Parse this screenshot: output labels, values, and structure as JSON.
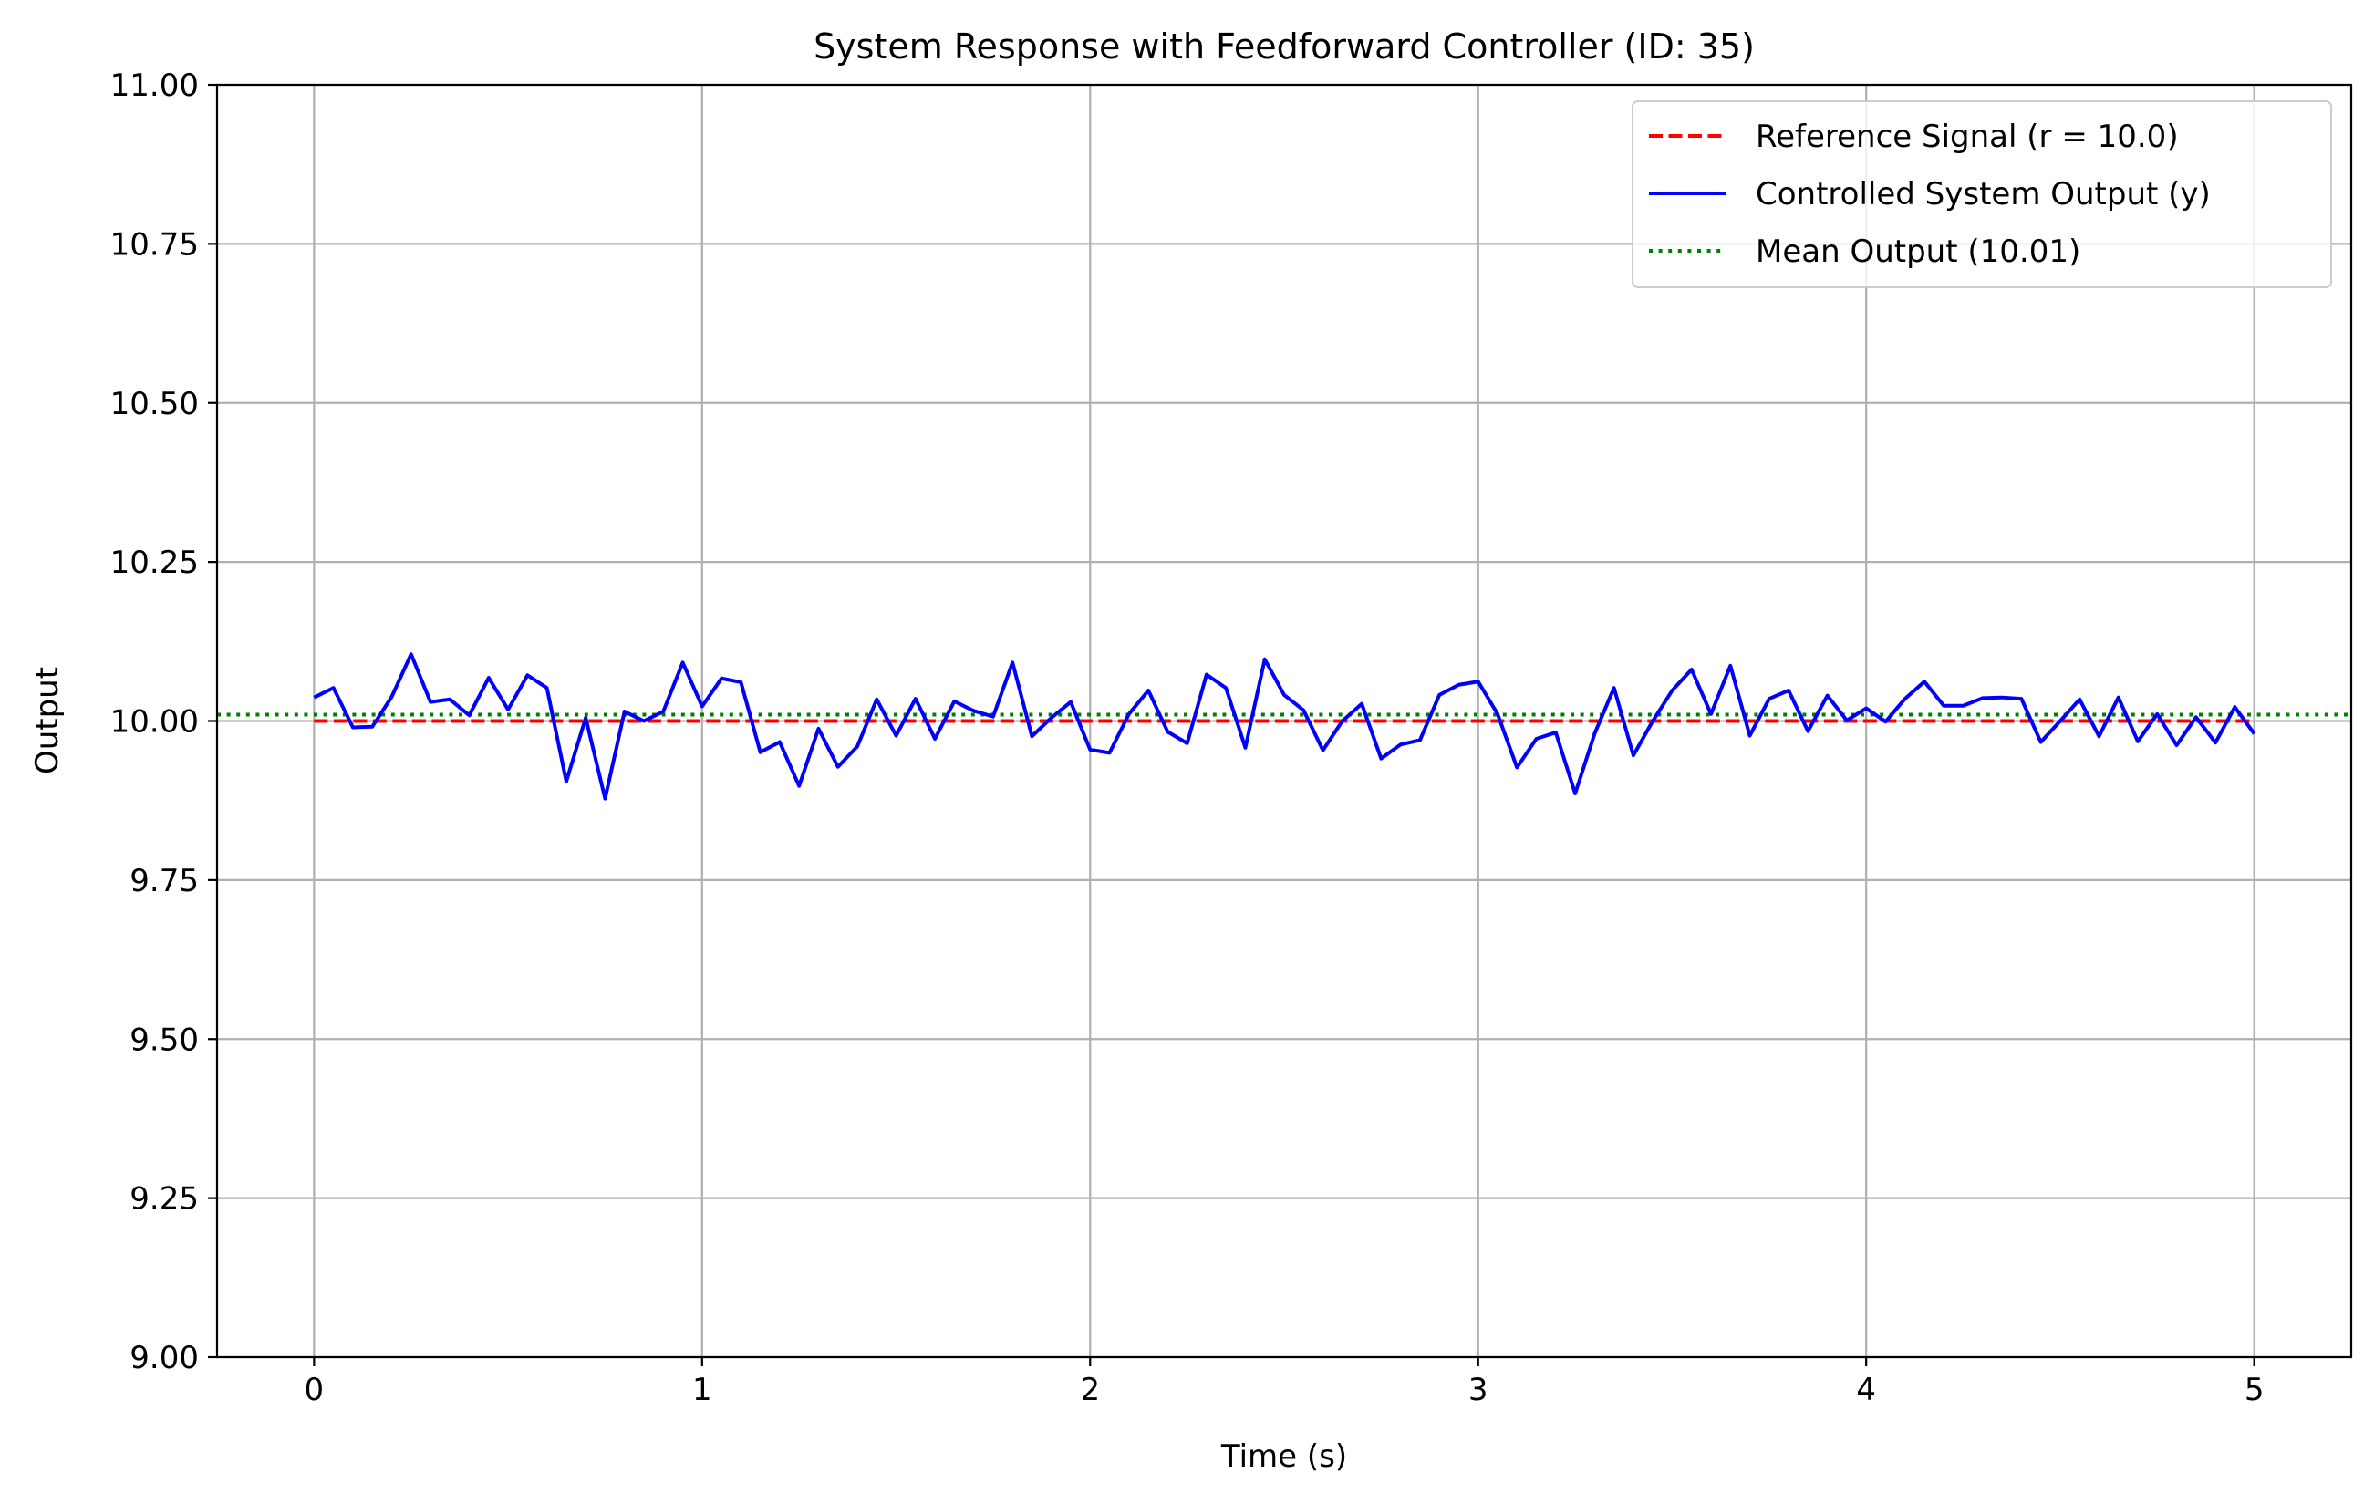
{
  "chart_data": {
    "type": "line",
    "title": "System Response with Feedforward Controller (ID: 35)",
    "xlabel": "Time (s)",
    "ylabel": "Output",
    "xlim": [
      -0.25,
      5.25
    ],
    "ylim": [
      9.0,
      11.0
    ],
    "xticks": [
      0,
      1,
      2,
      3,
      4,
      5
    ],
    "xtick_labels": [
      "0",
      "1",
      "2",
      "3",
      "4",
      "5"
    ],
    "yticks": [
      9.0,
      9.25,
      9.5,
      9.75,
      10.0,
      10.25,
      10.5,
      10.75,
      11.0
    ],
    "ytick_labels": [
      "9.00",
      "9.25",
      "9.50",
      "9.75",
      "10.00",
      "10.25",
      "10.50",
      "10.75",
      "11.00"
    ],
    "grid": true,
    "legend_position": "upper right",
    "series": [
      {
        "name": "Reference Signal (r = 10.0)",
        "style": "dashed",
        "color": "#ff0000",
        "x": [
          0,
          5
        ],
        "y": [
          10.0,
          10.0
        ]
      },
      {
        "name": "Controlled System Output (y)",
        "style": "solid",
        "color": "#0000ff",
        "x": [
          0.0,
          0.05,
          0.1,
          0.15,
          0.2,
          0.25,
          0.3,
          0.35,
          0.4,
          0.45,
          0.5,
          0.55,
          0.6,
          0.65,
          0.7,
          0.75,
          0.8,
          0.85,
          0.9,
          0.95,
          1.0,
          1.05,
          1.1,
          1.15,
          1.2,
          1.25,
          1.3,
          1.35,
          1.4,
          1.45,
          1.5,
          1.55,
          1.6,
          1.65,
          1.7,
          1.75,
          1.8,
          1.85,
          1.9,
          1.95,
          2.0,
          2.05,
          2.1,
          2.15,
          2.2,
          2.25,
          2.3,
          2.35,
          2.4,
          2.45,
          2.5,
          2.55,
          2.6,
          2.65,
          2.7,
          2.75,
          2.8,
          2.85,
          2.9,
          2.95,
          3.0,
          3.05,
          3.1,
          3.15,
          3.2,
          3.25,
          3.3,
          3.35,
          3.4,
          3.45,
          3.5,
          3.55,
          3.6,
          3.65,
          3.7,
          3.75,
          3.8,
          3.85,
          3.9,
          3.95,
          4.0,
          4.05,
          4.1,
          4.15,
          4.2,
          4.25,
          4.3,
          4.35,
          4.4,
          4.45,
          4.5,
          4.55,
          4.6,
          4.65,
          4.7,
          4.75,
          4.8,
          4.85,
          4.9,
          4.95,
          5.0
        ],
        "y": [
          10.037,
          10.052,
          9.99,
          9.991,
          10.038,
          10.105,
          10.03,
          10.034,
          10.009,
          10.068,
          10.018,
          10.072,
          10.052,
          9.905,
          10.005,
          9.878,
          10.015,
          10.0,
          10.015,
          10.092,
          10.023,
          10.067,
          10.061,
          9.951,
          9.967,
          9.898,
          9.988,
          9.928,
          9.96,
          10.034,
          9.977,
          10.035,
          9.972,
          10.031,
          10.016,
          10.007,
          10.092,
          9.976,
          10.005,
          10.03,
          9.955,
          9.95,
          10.011,
          10.048,
          9.983,
          9.965,
          10.073,
          10.052,
          9.958,
          10.097,
          10.041,
          10.017,
          9.954,
          10.0,
          10.027,
          9.941,
          9.963,
          9.97,
          10.041,
          10.057,
          10.062,
          10.011,
          9.927,
          9.972,
          9.982,
          9.886,
          9.98,
          10.052,
          9.946,
          10.0,
          10.048,
          10.081,
          10.011,
          10.087,
          9.977,
          10.035,
          10.048,
          9.984,
          10.04,
          10.001,
          10.02,
          9.999,
          10.035,
          10.062,
          10.024,
          10.024,
          10.036,
          10.037,
          10.035,
          9.967,
          10.0,
          10.034,
          9.976,
          10.037,
          9.968,
          10.011,
          9.962,
          10.006,
          9.966,
          10.022,
          9.98
        ]
      },
      {
        "name": "Mean Output (10.01)",
        "style": "dotted",
        "color": "#008000",
        "x": [
          -0.25,
          5.25
        ],
        "y": [
          10.01,
          10.01
        ]
      }
    ]
  }
}
